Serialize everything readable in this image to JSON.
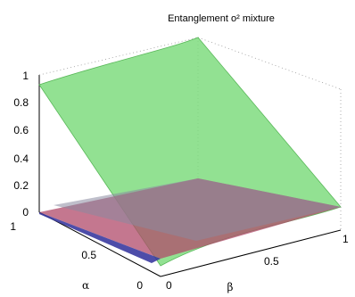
{
  "chart_data": {
    "type": "surface",
    "title": "Entanglement o² mixture",
    "xlabel": "β",
    "ylabel": "α",
    "zlabel": "",
    "xlim": [
      0,
      1
    ],
    "ylim": [
      0,
      1
    ],
    "zlim": [
      0,
      1
    ],
    "z_ticks": [
      "0",
      "0.2",
      "0.4",
      "0.6",
      "0.8",
      "1"
    ],
    "alpha_ticks": [
      "0",
      "0.5",
      "1"
    ],
    "beta_ticks": [
      "0",
      "0.5",
      "1"
    ],
    "grid": true,
    "series": [
      {
        "name": "",
        "color": "#7fdc7f",
        "alpha": [
          0,
          0.5,
          1
        ],
        "beta": [
          0,
          0.5,
          1
        ],
        "z": [
          [
            0.0,
            0.1,
            0.25
          ],
          [
            0.25,
            0.3,
            0.45
          ],
          [
            0.9,
            0.92,
            1.0
          ]
        ]
      },
      {
        "name": "",
        "color": "#a04060",
        "alpha": [
          0,
          1
        ],
        "beta": [
          0,
          1
        ],
        "z": [
          [
            0.0,
            0.0
          ],
          [
            0.0,
            0.0
          ]
        ]
      },
      {
        "name": "",
        "color": "#3a3aa0",
        "alpha": [
          0,
          1
        ],
        "beta": [
          0,
          1
        ],
        "z": [
          [
            0.0,
            0.0
          ],
          [
            0.02,
            0.0
          ]
        ]
      }
    ]
  }
}
